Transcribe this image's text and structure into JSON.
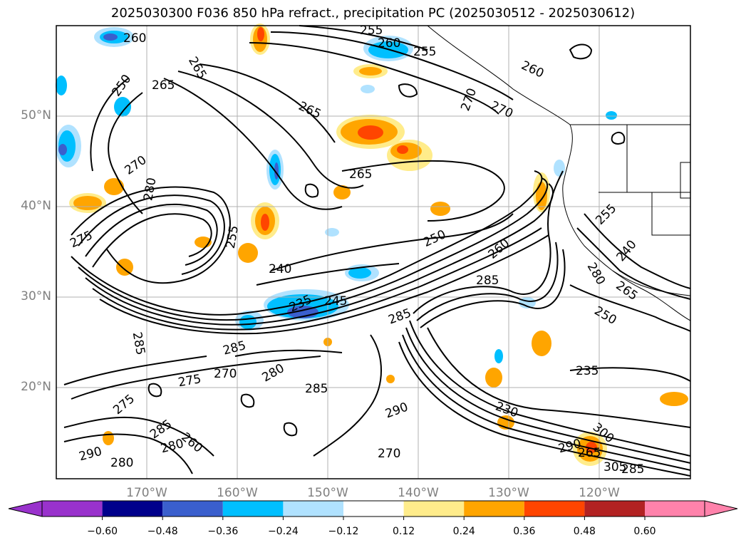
{
  "title": "2025030300 F036 850 hPa refract., precipitation PC (2025030512 - 2025030612)",
  "latitude_labels": [
    "50°N",
    "40°N",
    "30°N",
    "20°N"
  ],
  "longitude_labels": [
    "170°W",
    "160°W",
    "150°W",
    "140°W",
    "130°W",
    "120°W"
  ],
  "contour_labels": [
    "260",
    "265",
    "250",
    "255",
    "260",
    "255",
    "265",
    "260",
    "260",
    "270",
    "265",
    "270",
    "270",
    "280",
    "265",
    "275",
    "255",
    "250",
    "240",
    "260",
    "285",
    "235",
    "245",
    "285",
    "285",
    "285",
    "275",
    "270",
    "280",
    "285",
    "275",
    "290",
    "285",
    "280",
    "290",
    "280",
    "270",
    "260",
    "230",
    "235",
    "250",
    "265",
    "255",
    "240",
    "280",
    "290",
    "265",
    "300",
    "305",
    "285"
  ],
  "colorbar": {
    "ticks": [
      "−0.60",
      "−0.48",
      "−0.36",
      "−0.24",
      "−0.12",
      "0.12",
      "0.24",
      "0.36",
      "0.48",
      "0.60"
    ],
    "colors": [
      "#9932cc",
      "#00008b",
      "#3a5fcd",
      "#00bfff",
      "#b0e2ff",
      "#ffffff",
      "#ffec8b",
      "#ffa500",
      "#ff4500",
      "#b22222",
      "#ff82ab"
    ]
  },
  "precip_colors": {
    "neg_strong": "#3a5fcd",
    "neg_mid": "#00bfff",
    "neg_light": "#b0e2ff",
    "pos_light": "#ffec8b",
    "pos_mid": "#ffa500",
    "pos_strong": "#ff4500"
  }
}
